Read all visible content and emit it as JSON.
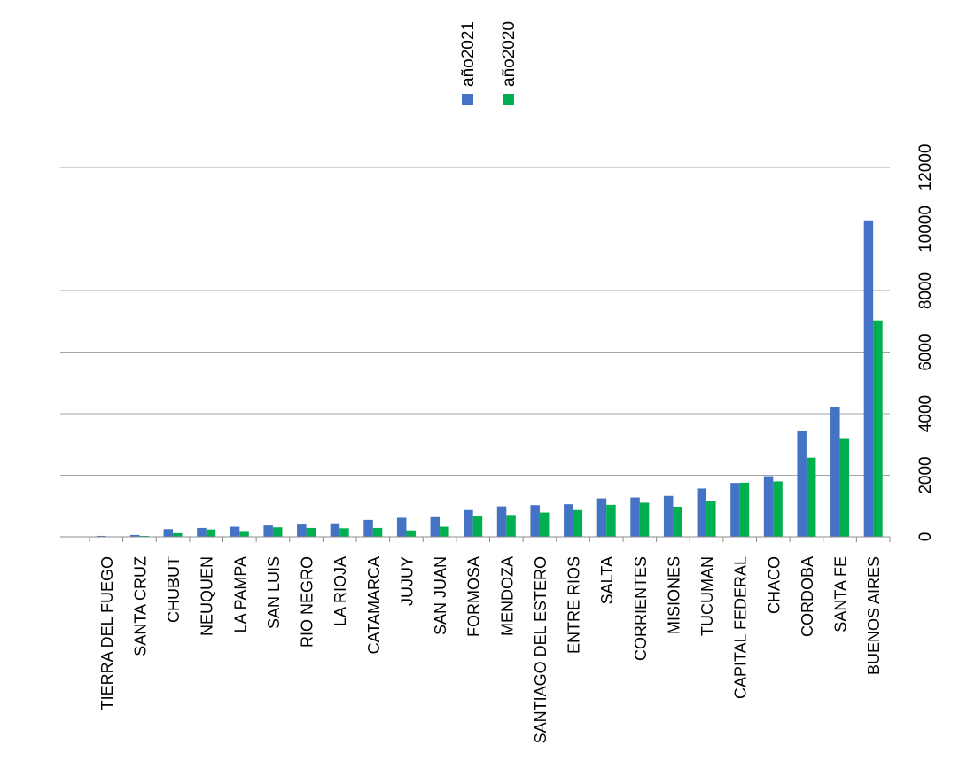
{
  "chart_data": {
    "type": "bar",
    "categories": [
      "TIERRA DEL FUEGO",
      "SANTA CRUZ",
      "CHUBUT",
      "NEUQUEN",
      "LA PAMPA",
      "SAN LUIS",
      "RIO NEGRO",
      "LA RIOJA",
      "CATAMARCA",
      "JUJUY",
      "SAN JUAN",
      "FORMOSA",
      "MENDOZA",
      "SANTIAGO DEL ESTERO",
      "ENTRE RIOS",
      "SALTA",
      "CORRIENTES",
      "MISIONES",
      "TUCUMAN",
      "CAPITAL FEDERAL",
      "CHACO",
      "CORDOBA",
      "SANTA FE",
      "BUENOS AIRES"
    ],
    "series": [
      {
        "name": "año2021",
        "color": "#4472c4",
        "values": [
          30,
          60,
          250,
          290,
          330,
          370,
          400,
          440,
          550,
          620,
          640,
          870,
          990,
          1030,
          1060,
          1250,
          1280,
          1330,
          1570,
          1750,
          1970,
          3440,
          4220,
          10280
        ]
      },
      {
        "name": "año2020",
        "color": "#00b050",
        "values": [
          10,
          30,
          120,
          240,
          190,
          310,
          290,
          280,
          290,
          210,
          330,
          690,
          710,
          790,
          870,
          1040,
          1110,
          980,
          1170,
          1760,
          1800,
          2570,
          3180,
          7030
        ]
      }
    ],
    "ylim": [
      0,
      12000
    ],
    "yticks": [
      "0",
      "2000",
      "4000",
      "6000",
      "8000",
      "10000",
      "12000"
    ],
    "grid": true,
    "legend": "top"
  }
}
